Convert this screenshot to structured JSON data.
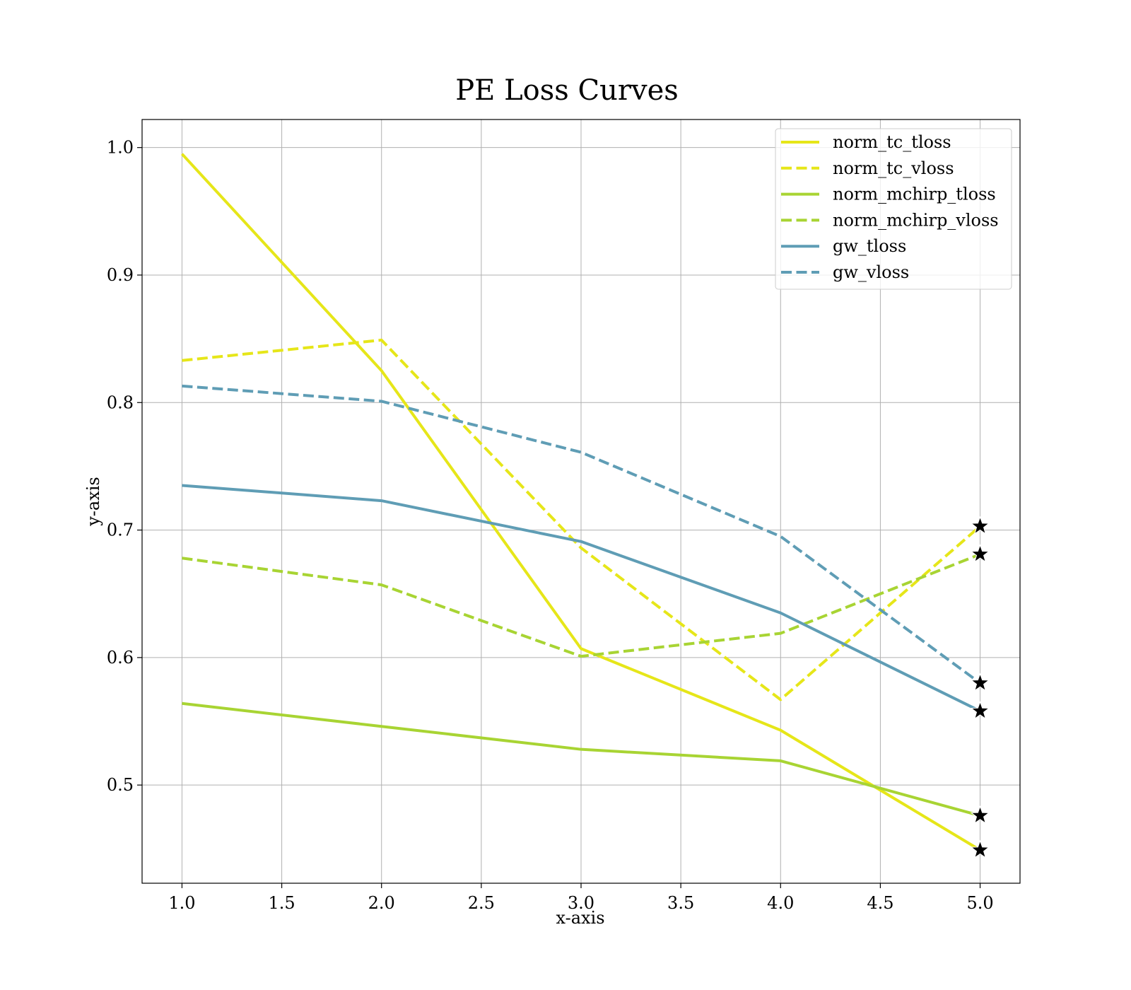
{
  "chart_data": {
    "type": "line",
    "title": "PE Loss Curves",
    "xlabel": "x-axis",
    "ylabel": "y-axis",
    "xlim": [
      0.8,
      5.2
    ],
    "ylim": [
      0.423,
      1.022
    ],
    "x_ticks": [
      1.0,
      1.5,
      2.0,
      2.5,
      3.0,
      3.5,
      4.0,
      4.5,
      5.0
    ],
    "y_ticks": [
      0.5,
      0.6,
      0.7,
      0.8,
      0.9,
      1.0
    ],
    "x_tick_labels": [
      "1.0",
      "1.5",
      "2.0",
      "2.5",
      "3.0",
      "3.5",
      "4.0",
      "4.5",
      "5.0"
    ],
    "y_tick_labels": [
      "0.5",
      "0.6",
      "0.7",
      "0.8",
      "0.9",
      "1.0"
    ],
    "grid": true,
    "legend_position": "top-right",
    "end_marker": "star",
    "x": [
      1,
      2,
      3,
      4,
      5
    ],
    "series": [
      {
        "name": "norm_tc_tloss",
        "color": "#e6e619",
        "dash": "solid",
        "values": [
          0.995,
          0.825,
          0.607,
          0.543,
          0.449
        ]
      },
      {
        "name": "norm_tc_vloss",
        "color": "#e6e619",
        "dash": "dashed",
        "values": [
          0.833,
          0.849,
          0.686,
          0.567,
          0.703
        ]
      },
      {
        "name": "norm_mchirp_tloss",
        "color": "#a8d433",
        "dash": "solid",
        "values": [
          0.564,
          0.546,
          0.528,
          0.519,
          0.476
        ]
      },
      {
        "name": "norm_mchirp_vloss",
        "color": "#a8d433",
        "dash": "dashed",
        "values": [
          0.678,
          0.657,
          0.601,
          0.619,
          0.681
        ]
      },
      {
        "name": "gw_tloss",
        "color": "#5f9db5",
        "dash": "solid",
        "values": [
          0.735,
          0.723,
          0.691,
          0.635,
          0.558
        ]
      },
      {
        "name": "gw_vloss",
        "color": "#5f9db5",
        "dash": "dashed",
        "values": [
          0.813,
          0.801,
          0.761,
          0.695,
          0.58
        ]
      }
    ]
  }
}
